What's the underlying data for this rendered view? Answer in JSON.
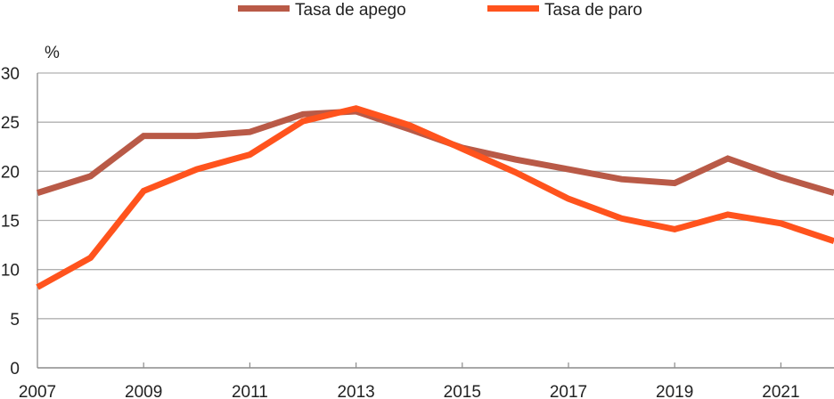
{
  "chart_data": {
    "type": "line",
    "title": "",
    "xlabel": "",
    "ylabel": "%",
    "ylim": [
      0,
      30
    ],
    "yticks": [
      0,
      5,
      10,
      15,
      20,
      25,
      30
    ],
    "xtick_labels": [
      "2007",
      "2009",
      "2011",
      "2013",
      "2015",
      "2017",
      "2019",
      "2021"
    ],
    "grid": "horizontal",
    "legend_position": "top",
    "x": [
      2007,
      2008,
      2009,
      2010,
      2011,
      2012,
      2013,
      2014,
      2015,
      2016,
      2017,
      2018,
      2019,
      2020,
      2021,
      2022
    ],
    "series": [
      {
        "name": "Tasa de apego",
        "color": "#B95A47",
        "values": [
          17.8,
          19.5,
          23.6,
          23.6,
          24.0,
          25.8,
          26.1,
          24.3,
          22.4,
          21.2,
          20.2,
          19.2,
          18.8,
          21.3,
          19.4,
          17.8
        ]
      },
      {
        "name": "Tasa de paro",
        "color": "#FF531D",
        "values": [
          8.2,
          11.2,
          18.0,
          20.2,
          21.7,
          25.1,
          26.4,
          24.7,
          22.3,
          19.9,
          17.2,
          15.2,
          14.1,
          15.6,
          14.7,
          12.9
        ]
      }
    ]
  },
  "legend": {
    "items": [
      {
        "label": "Tasa de apego",
        "color": "#B95A47"
      },
      {
        "label": "Tasa de paro",
        "color": "#FF531D"
      }
    ]
  },
  "axis": {
    "y_unit": "%",
    "gridline_color": "#B0B0B0",
    "axis_color": "#8C8C8C"
  }
}
